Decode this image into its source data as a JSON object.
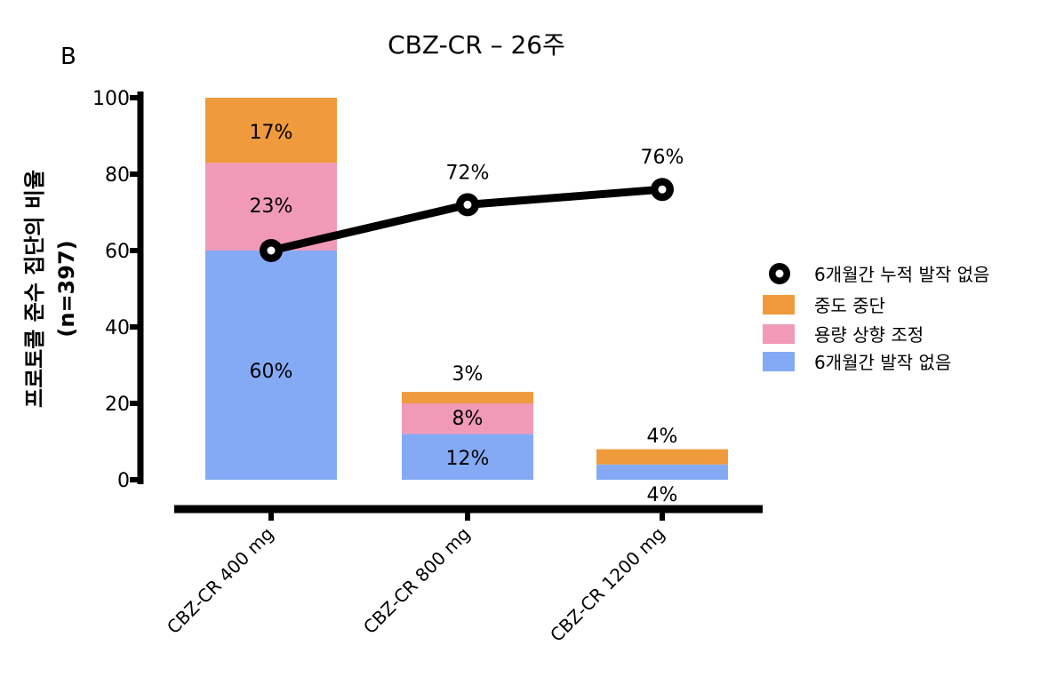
{
  "panel_label": "B",
  "chart_data": {
    "type": "bar",
    "title": "CBZ-CR – 26주",
    "ylabel_line1": "프로토콜 준수 집단의 비율",
    "ylabel_line2": "(n=397)",
    "xlabel": "",
    "ylim": [
      0,
      100
    ],
    "yticks": [
      "0",
      "20",
      "40",
      "60",
      "80",
      "100"
    ],
    "categories": [
      "CBZ-CR 400 mg",
      "CBZ-CR 800 mg",
      "CBZ-CR 1200 mg"
    ],
    "stacked": true,
    "series": [
      {
        "name": "6개월간 발작 없음",
        "color": "#85aaf5",
        "values": [
          60,
          12,
          4
        ],
        "labels": [
          "60%",
          "12%",
          "4%"
        ]
      },
      {
        "name": "용량 상향 조정",
        "color": "#f09ab8",
        "values": [
          23,
          8,
          0
        ],
        "labels": [
          "23%",
          "8%",
          ""
        ]
      },
      {
        "name": "중도 중단",
        "color": "#ef9b3d",
        "values": [
          17,
          3,
          4
        ],
        "labels": [
          "17%",
          "3%",
          "4%"
        ]
      }
    ],
    "line": {
      "name": "6개월간 누적 발작 없음",
      "values": [
        60,
        72,
        76
      ],
      "labels": [
        "",
        "72%",
        "76%"
      ]
    },
    "legend": {
      "placement": "right",
      "items": [
        "6개월간 누적 발작 없음",
        "중도 중단",
        "용량 상향 조정",
        "6개월간 발작 없음"
      ]
    }
  }
}
